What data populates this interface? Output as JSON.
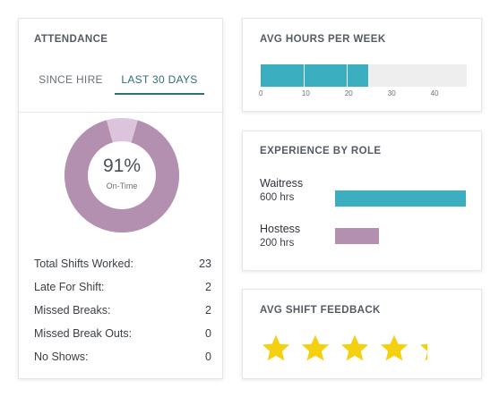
{
  "attendance": {
    "title": "ATTENDANCE",
    "tabs": [
      {
        "label": "SINCE HIRE",
        "active": false
      },
      {
        "label": "LAST 30 DAYS",
        "active": true
      }
    ],
    "on_time": {
      "value": "91%",
      "label": "On-Time",
      "fraction": 0.91
    },
    "stats": [
      {
        "label": "Total Shifts Worked:",
        "value": "23"
      },
      {
        "label": "Late For Shift:",
        "value": "2"
      },
      {
        "label": "Missed Breaks:",
        "value": "2"
      },
      {
        "label": "Missed Break Outs:",
        "value": "0"
      },
      {
        "label": "No Shows:",
        "value": "0"
      }
    ]
  },
  "avg_hours": {
    "title": "AVG HOURS PER WEEK",
    "value": 25,
    "max": 48,
    "ticks": [
      "0",
      "10",
      "20",
      "30",
      "40"
    ]
  },
  "experience": {
    "title": "EXPERIENCE BY ROLE",
    "roles": [
      {
        "name": "Waitress",
        "hours_label": "600 hrs",
        "hours": 600
      },
      {
        "name": "Hostess",
        "hours_label": "200 hrs",
        "hours": 200
      }
    ]
  },
  "feedback": {
    "title": "AVG SHIFT FEEDBACK",
    "rating": 4.3,
    "max_rating": 5
  },
  "colors": {
    "teal": "#3bafc0",
    "mauve": "#b490b0",
    "mauve_light": "#dcc5dc",
    "star": "#f5d011",
    "tab_active": "#2e6f7a"
  }
}
